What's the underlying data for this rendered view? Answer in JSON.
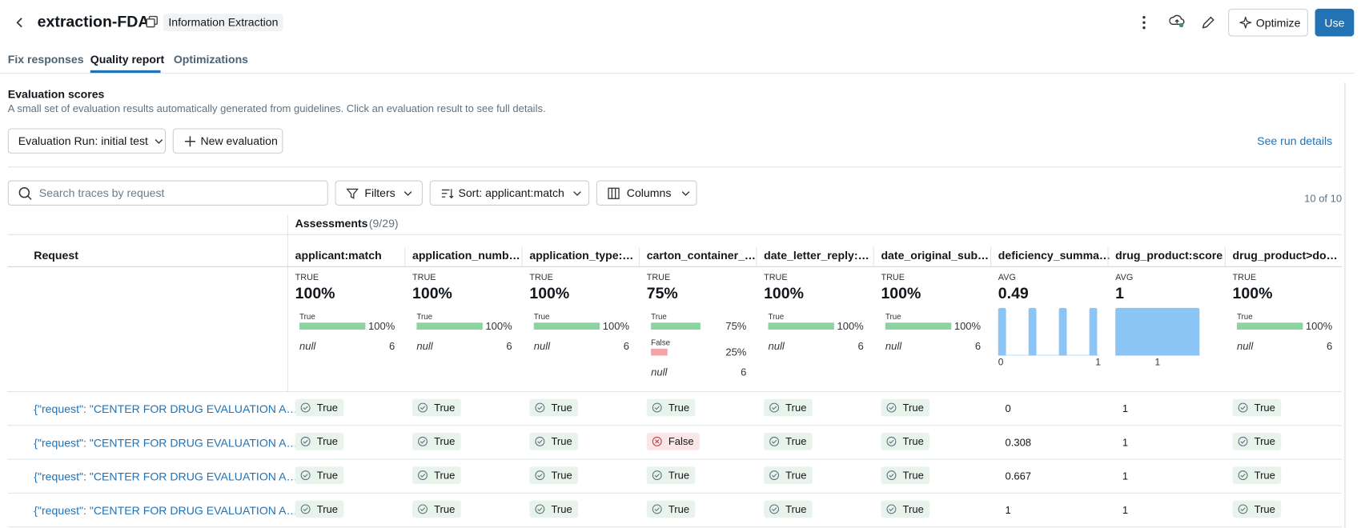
{
  "header": {
    "title": "extraction-FDA",
    "tag": "Information Extraction",
    "optimize": "Optimize",
    "use": "Use"
  },
  "tabs": [
    "Fix responses",
    "Quality report",
    "Optimizations"
  ],
  "section": {
    "title": "Evaluation scores",
    "subtitle": "A small set of evaluation results automatically generated from guidelines. Click an evaluation result to see full details."
  },
  "toolbar": {
    "run_select": "Evaluation Run: initial test",
    "new_evaluation": "New evaluation",
    "run_details": "See run details"
  },
  "filters": {
    "search_placeholder": "Search traces by request",
    "filters": "Filters",
    "sort": "Sort: applicant:match",
    "columns": "Columns",
    "count": "10 of 10"
  },
  "assessments": {
    "label": "Assessments",
    "count": "(9/29)"
  },
  "request_header": "Request",
  "columns": [
    {
      "name": "applicant:match",
      "summary_label": "TRUE",
      "summary": "100%",
      "dist": [
        {
          "label": "True",
          "value": 100,
          "value_label": "100%"
        }
      ],
      "null_label": "null",
      "null_count": 6
    },
    {
      "name": "application_numb…",
      "summary_label": "TRUE",
      "summary": "100%",
      "dist": [
        {
          "label": "True",
          "value": 100,
          "value_label": "100%"
        }
      ],
      "null_label": "null",
      "null_count": 6
    },
    {
      "name": "application_type:…",
      "summary_label": "TRUE",
      "summary": "100%",
      "dist": [
        {
          "label": "True",
          "value": 100,
          "value_label": "100%"
        }
      ],
      "null_label": "null",
      "null_count": 6
    },
    {
      "name": "carton_container_…",
      "summary_label": "TRUE",
      "summary": "75%",
      "dist": [
        {
          "label": "True",
          "value": 75,
          "value_label": "75%"
        },
        {
          "label": "False",
          "value": 25,
          "value_label": "25%"
        }
      ],
      "null_label": "null",
      "null_count": 6
    },
    {
      "name": "date_letter_reply:…",
      "summary_label": "TRUE",
      "summary": "100%",
      "dist": [
        {
          "label": "True",
          "value": 100,
          "value_label": "100%"
        }
      ],
      "null_label": "null",
      "null_count": 6
    },
    {
      "name": "date_original_sub…",
      "summary_label": "TRUE",
      "summary": "100%",
      "dist": [
        {
          "label": "True",
          "value": 100,
          "value_label": "100%"
        }
      ],
      "null_label": "null",
      "null_count": 6
    },
    {
      "name": "deficiency_summa…",
      "summary_label": "AVG",
      "summary": "0.49",
      "histogram": {
        "values": [
          1,
          0,
          0,
          1,
          0,
          0,
          1,
          0,
          0,
          1
        ],
        "axis_labels": [
          "0",
          "1"
        ]
      }
    },
    {
      "name": "drug_product:score",
      "summary_label": "AVG",
      "summary": "1",
      "histogram": {
        "values": [
          1
        ],
        "axis_labels": [
          "1"
        ]
      }
    },
    {
      "name": "drug_product>do…",
      "summary_label": "TRUE",
      "summary": "100%",
      "dist": [
        {
          "label": "True",
          "value": 100,
          "value_label": "100%"
        }
      ],
      "null_label": "null",
      "null_count": 6
    }
  ],
  "rows": [
    {
      "request": "{\"request\": \"CENTER FOR DRUG EVALUATION A…",
      "cells": [
        "True",
        "True",
        "True",
        "True",
        "True",
        "True",
        0,
        1,
        "True"
      ]
    },
    {
      "request": "{\"request\": \"CENTER FOR DRUG EVALUATION A…",
      "cells": [
        "True",
        "True",
        "True",
        "False",
        "True",
        "True",
        0.308,
        1,
        "True"
      ]
    },
    {
      "request": "{\"request\": \"CENTER FOR DRUG EVALUATION A…",
      "cells": [
        "True",
        "True",
        "True",
        "True",
        "True",
        "True",
        0.667,
        1,
        "True"
      ]
    },
    {
      "request": "{\"request\": \"CENTER FOR DRUG EVALUATION A…",
      "cells": [
        "True",
        "True",
        "True",
        "True",
        "True",
        "True",
        1,
        1,
        "True"
      ]
    }
  ]
}
